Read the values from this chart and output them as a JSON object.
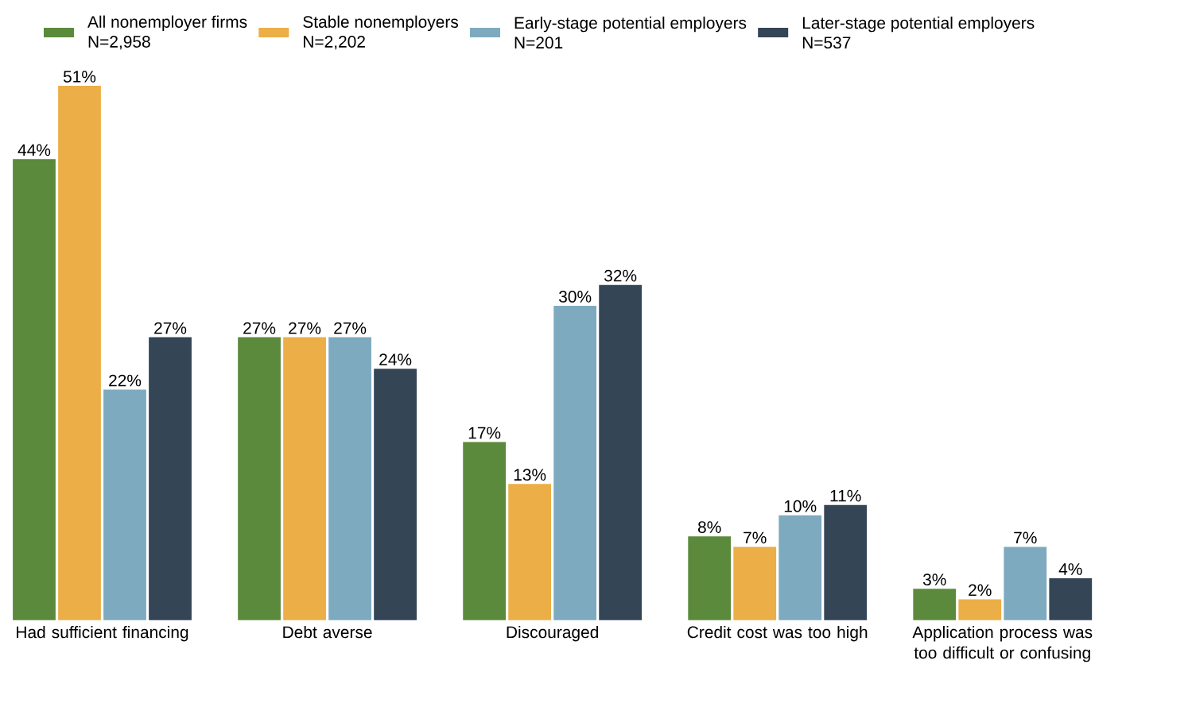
{
  "chart_data": {
    "type": "bar",
    "categories": [
      "Had sufficient financing",
      "Debt averse",
      "Discouraged",
      "Credit cost was too high",
      "Application process was too difficult or confusing"
    ],
    "series": [
      {
        "name": "All nonemployer firms N=2,958",
        "color": "#5b8a3c",
        "values": [
          44,
          27,
          17,
          8,
          3
        ],
        "value_labels": [
          "44%",
          "27%",
          "17%",
          "8%",
          "3%"
        ]
      },
      {
        "name": "Stable nonemployers N=2,202",
        "color": "#ecae47",
        "values": [
          51,
          27,
          13,
          7,
          2
        ],
        "value_labels": [
          "51%",
          "27%",
          "13%",
          "7%",
          "2%"
        ]
      },
      {
        "name": "Early-stage potential employers N=201",
        "color": "#7eaac0",
        "values": [
          22,
          27,
          30,
          10,
          7
        ],
        "value_labels": [
          "22%",
          "27%",
          "30%",
          "10%",
          "7%"
        ]
      },
      {
        "name": "Later-stage potential employers N=537",
        "color": "#344556",
        "values": [
          27,
          24,
          32,
          11,
          4
        ],
        "value_labels": [
          "27%",
          "24%",
          "32%",
          "11%",
          "4%"
        ]
      }
    ],
    "legend": "top"
  }
}
